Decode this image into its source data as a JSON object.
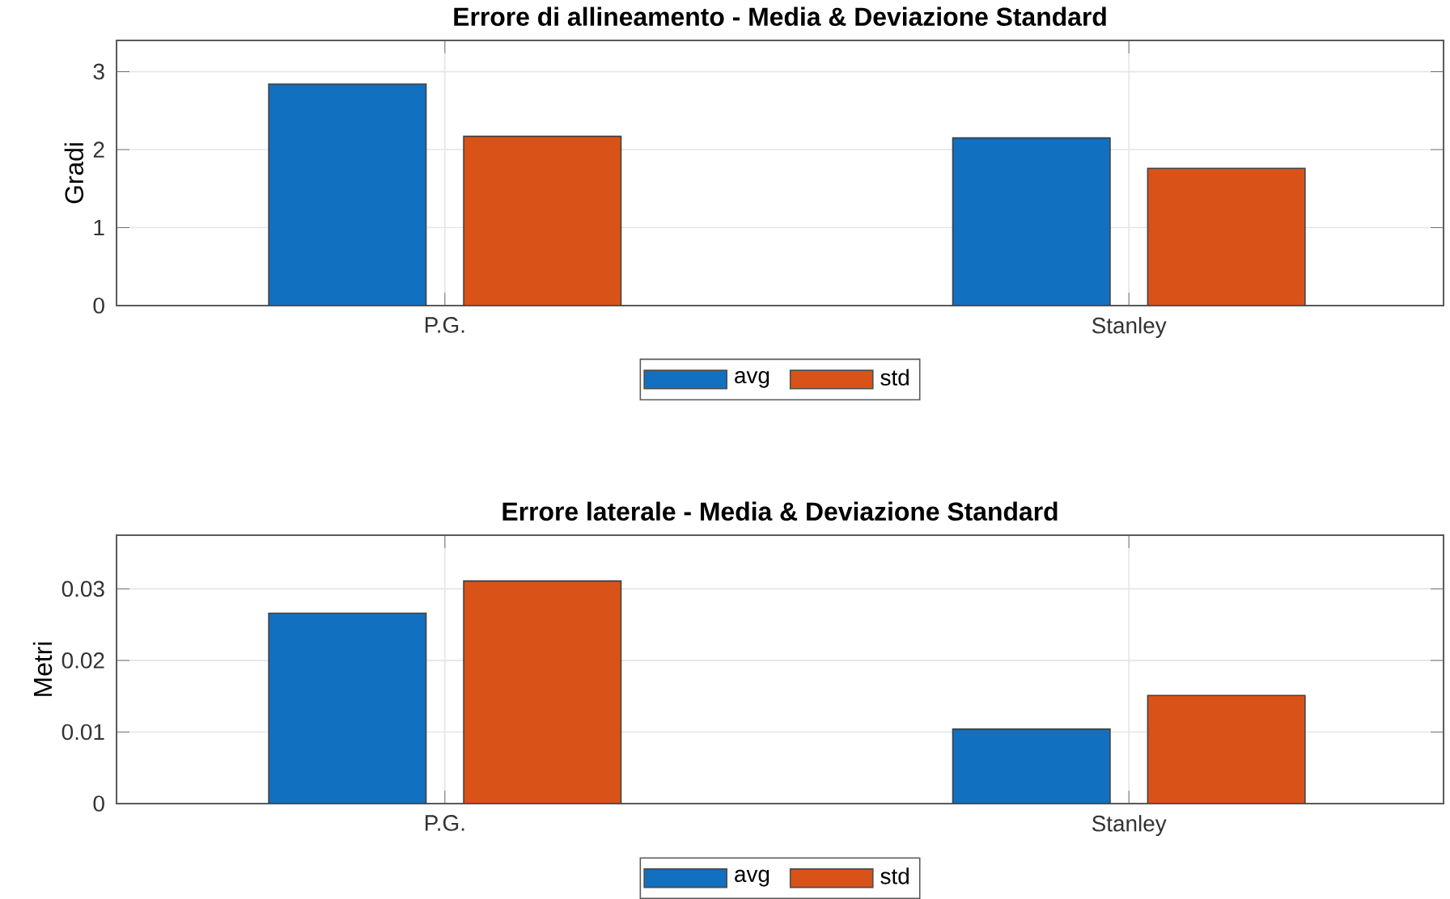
{
  "chart_data": [
    {
      "type": "bar",
      "title": "Errore di allineamento - Media & Deviazione Standard",
      "ylabel": "Gradi",
      "categories": [
        "P.G.",
        "Stanley"
      ],
      "series": [
        {
          "name": "avg",
          "color": "#1270c0",
          "values": [
            2.84,
            2.15
          ]
        },
        {
          "name": "std",
          "color": "#d95319",
          "values": [
            2.17,
            1.76
          ]
        }
      ],
      "ylim": [
        0,
        3.4
      ],
      "yticks": [
        0,
        1,
        2,
        3
      ],
      "grid": true,
      "legend": "bottom"
    },
    {
      "type": "bar",
      "title": "Errore laterale - Media & Deviazione Standard",
      "ylabel": "Metri",
      "categories": [
        "P.G.",
        "Stanley"
      ],
      "series": [
        {
          "name": "avg",
          "color": "#1270c0",
          "values": [
            0.0266,
            0.0104
          ]
        },
        {
          "name": "std",
          "color": "#d95319",
          "values": [
            0.0311,
            0.0151
          ]
        }
      ],
      "ylim": [
        0,
        0.0375
      ],
      "yticks": [
        0,
        0.01,
        0.02,
        0.03
      ],
      "grid": true,
      "legend": "bottom"
    }
  ]
}
